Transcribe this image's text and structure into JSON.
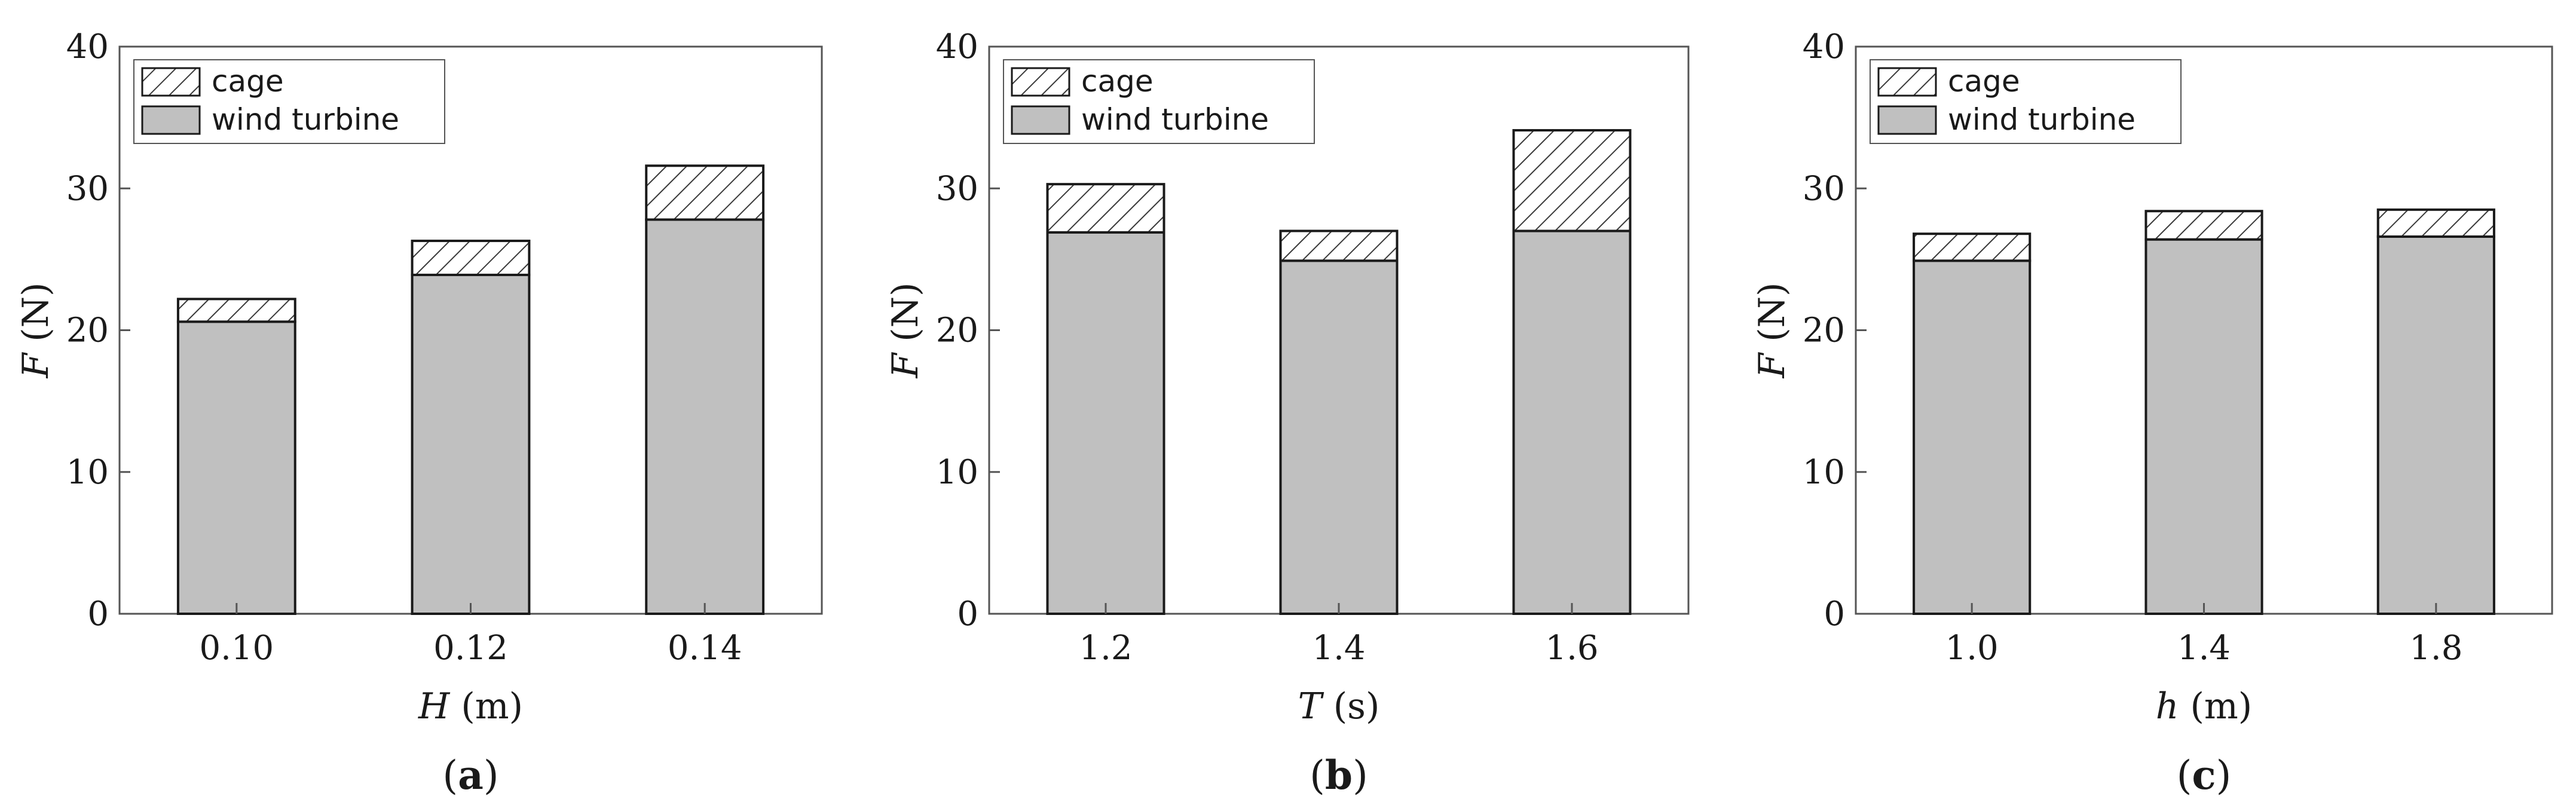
{
  "colors": {
    "wind_turbine_fill": "#c0c0c0",
    "cage_fill": "#ffffff",
    "cage_hatch": "#3a3a3a",
    "stroke": "#1a1a1a",
    "frame": "#555555"
  },
  "chart_data": [
    {
      "type": "bar",
      "stacked": true,
      "panel_label": "a",
      "categories": [
        "0.10",
        "0.12",
        "0.14"
      ],
      "series": [
        {
          "name": "wind turbine",
          "values": [
            20.6,
            23.9,
            27.8
          ]
        },
        {
          "name": "cage",
          "values": [
            1.6,
            2.4,
            3.8
          ]
        }
      ],
      "ylabel_symbol": "F",
      "ylabel_unit": " (N)",
      "xlabel_symbol": "H",
      "xlabel_unit": " (m)",
      "ylim": [
        0,
        40
      ],
      "yticks": [
        "0",
        "10",
        "20",
        "30",
        "40"
      ],
      "legend_position": "top-left",
      "grid": false
    },
    {
      "type": "bar",
      "stacked": true,
      "panel_label": "b",
      "categories": [
        "1.2",
        "1.4",
        "1.6"
      ],
      "series": [
        {
          "name": "wind turbine",
          "values": [
            26.9,
            24.9,
            27.0
          ]
        },
        {
          "name": "cage",
          "values": [
            3.4,
            2.1,
            7.1
          ]
        }
      ],
      "ylabel_symbol": "F",
      "ylabel_unit": " (N)",
      "xlabel_symbol": "T",
      "xlabel_unit": " (s)",
      "ylim": [
        0,
        40
      ],
      "yticks": [
        "0",
        "10",
        "20",
        "30",
        "40"
      ],
      "legend_position": "top-left",
      "grid": false
    },
    {
      "type": "bar",
      "stacked": true,
      "panel_label": "c",
      "categories": [
        "1.0",
        "1.4",
        "1.8"
      ],
      "series": [
        {
          "name": "wind turbine",
          "values": [
            24.9,
            26.4,
            26.6
          ]
        },
        {
          "name": "cage",
          "values": [
            1.9,
            2.0,
            1.9
          ]
        }
      ],
      "ylabel_symbol": "F",
      "ylabel_unit": " (N)",
      "xlabel_symbol": "h",
      "xlabel_unit": " (m)",
      "ylim": [
        0,
        40
      ],
      "yticks": [
        "0",
        "10",
        "20",
        "30",
        "40"
      ],
      "legend_position": "top-left",
      "grid": false
    }
  ]
}
